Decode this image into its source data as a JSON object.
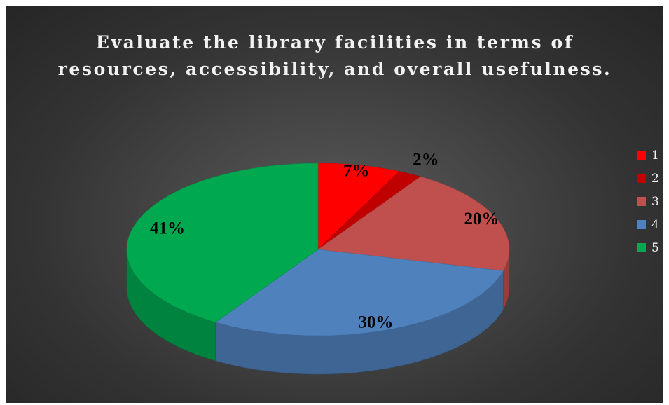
{
  "chart_data": {
    "type": "pie",
    "title": "Evaluate the library facilities in terms of resources, accessibility, and overall usefulness.",
    "categories": [
      "1",
      "2",
      "3",
      "4",
      "5"
    ],
    "values": [
      7,
      2,
      20,
      30,
      41
    ],
    "labels": [
      "7%",
      "2%",
      "20%",
      "30%",
      "41%"
    ],
    "colors": [
      "#ff0000",
      "#c00000",
      "#c0504d",
      "#4f81bd",
      "#00a84f"
    ],
    "legend_position": "right",
    "style": "3d"
  }
}
